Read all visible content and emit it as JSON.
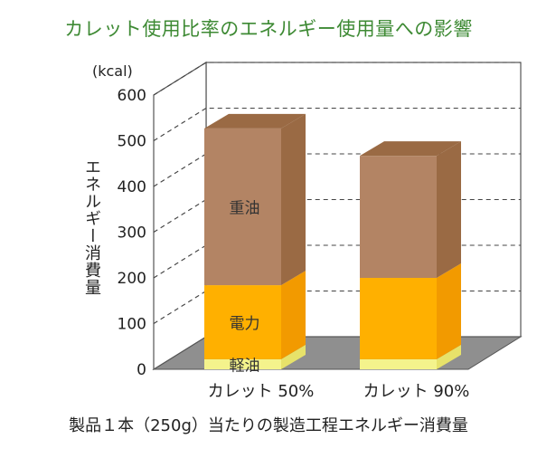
{
  "title": "カレット使用比率のエネルギー使用量への影響",
  "footer": "製品１本（250g）当たりの製造工程エネルギー消費量",
  "chart_data": {
    "type": "bar",
    "stacked": true,
    "unit": "(kcal)",
    "ylabel": "エネルギー消費量",
    "ylim": [
      0,
      600
    ],
    "yticks": [
      0,
      100,
      200,
      300,
      400,
      500,
      600
    ],
    "categories": [
      "カレット 50%",
      "カレット 90%"
    ],
    "series": [
      {
        "name": "軽油",
        "values": [
          22,
          22
        ],
        "color": "#f4f38c",
        "side": "#e7e26a"
      },
      {
        "name": "電力",
        "values": [
          162,
          178
        ],
        "color": "#ffb000",
        "side": "#f29a00"
      },
      {
        "name": "重油",
        "values": [
          343,
          267
        ],
        "color": "#b38464",
        "side": "#9a6a44"
      }
    ],
    "grid": true
  }
}
